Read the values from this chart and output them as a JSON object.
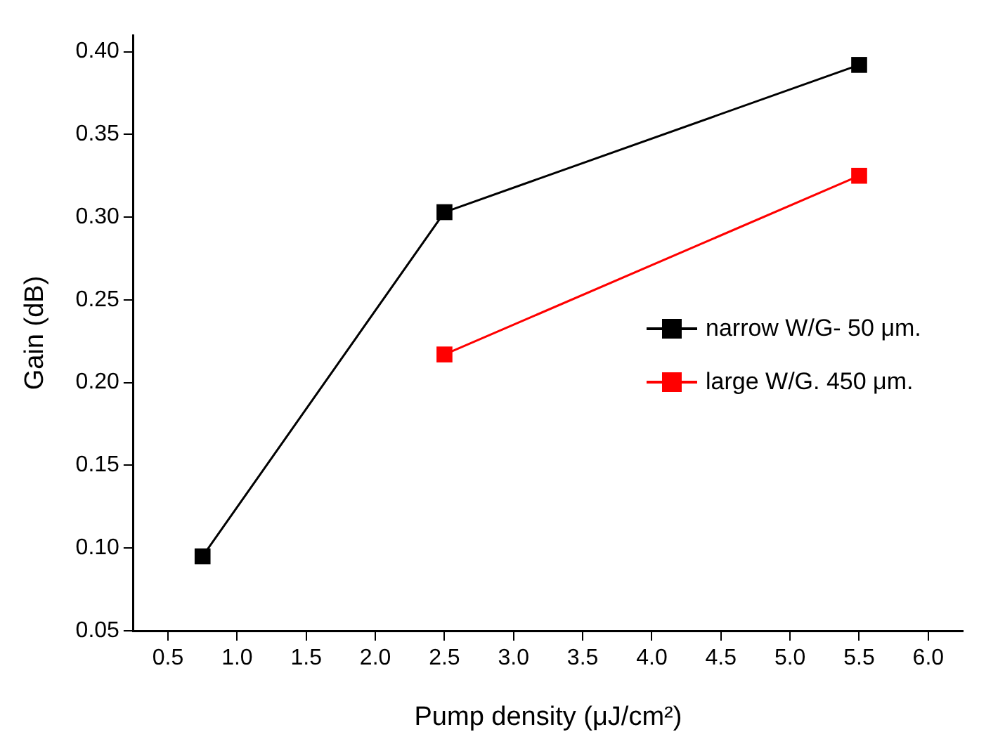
{
  "chart_data": {
    "type": "line",
    "xlabel": "Pump density (μJ/cm²)",
    "ylabel": "Gain (dB)",
    "series": [
      {
        "name": "narrow W/G- 50 μm.",
        "color": "#000000",
        "x": [
          0.75,
          2.5,
          5.5
        ],
        "values": [
          0.095,
          0.303,
          0.392
        ]
      },
      {
        "name": "large W/G. 450 μm.",
        "color": "#ff0000",
        "x": [
          2.5,
          5.5
        ],
        "values": [
          0.217,
          0.325
        ]
      }
    ],
    "xlim": [
      0.25,
      6.25
    ],
    "xticks": [
      0.5,
      {
        "value": 1,
        "label": "1.0"
      },
      1.5,
      {
        "value": 2,
        "label": "2.0"
      },
      2.5,
      {
        "value": 3,
        "label": "3.0"
      },
      3.5,
      {
        "value": 4,
        "label": "4.0"
      },
      4.5,
      {
        "value": 5,
        "label": "5.0"
      },
      5.5,
      {
        "value": 6,
        "label": "6.0"
      }
    ],
    "ylim": [
      0.05,
      0.41
    ],
    "yticks": [
      0.05,
      {
        "value": 0.1,
        "label": "0.10"
      },
      0.15,
      {
        "value": 0.2,
        "label": "0.20"
      },
      0.25,
      {
        "value": 0.3,
        "label": "0.30"
      },
      0.35,
      {
        "value": 0.4,
        "label": "0.40"
      }
    ],
    "grid": false,
    "legend": "right",
    "marker": "square",
    "line_style": "solid"
  }
}
